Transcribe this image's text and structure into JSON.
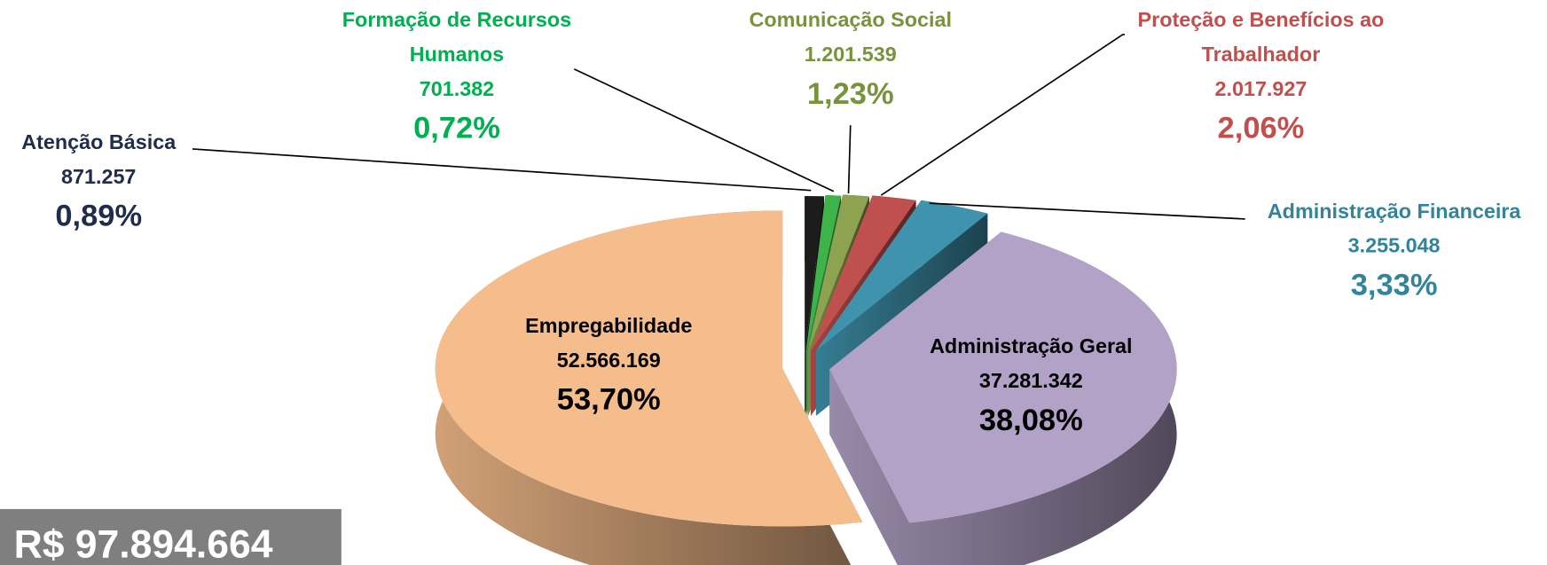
{
  "chart_data": {
    "type": "pie",
    "categories": [
      "Atenção Básica",
      "Formação de Recursos Humanos",
      "Comunicação Social",
      "Proteção e Benefícios ao Trabalhador",
      "Administração Financeira",
      "Administração Geral",
      "Empregabilidade"
    ],
    "values": [
      0.89,
      0.72,
      1.23,
      2.06,
      3.33,
      38.08,
      53.7
    ],
    "value_labels": [
      "0,89%",
      "0,72%",
      "1,23%",
      "2,06%",
      "3,33%",
      "38,08%",
      "53,70%"
    ],
    "amounts": [
      871257,
      701382,
      1201539,
      2017927,
      3255048,
      37281342,
      52566169
    ],
    "amount_labels": [
      "871.257",
      "701.382",
      "1.201.539",
      "2.017.927",
      "3.255.048",
      "37.281.342",
      "52.566.169"
    ],
    "colors": [
      "#1c1c1c",
      "#3db34a",
      "#8ea350",
      "#c0504d",
      "#3f93ad",
      "#b3a2c7",
      "#f6bd8c"
    ],
    "label_colors": [
      "#1f2d4a",
      "#00b050",
      "#77933c",
      "#c0504d",
      "#31849b",
      "#000000",
      "#000000"
    ],
    "total": 97894664,
    "total_label": "R$ 97.894.664"
  }
}
